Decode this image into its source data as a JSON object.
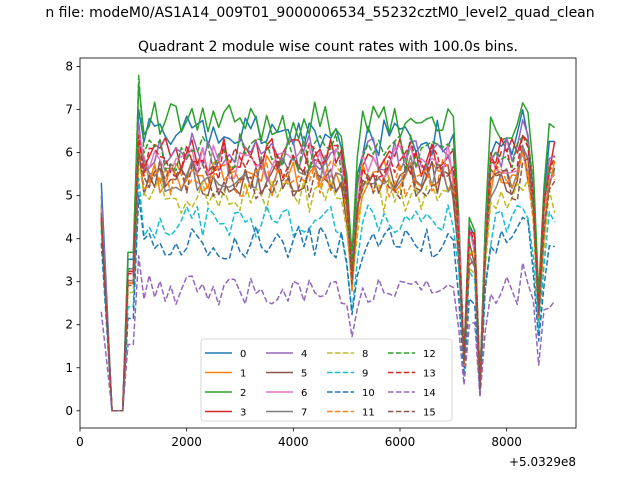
{
  "chart_data": {
    "type": "line",
    "suptitle": "n file: modeM0/AS1A14_009T01_9000006534_55232cztM0_level2_quad_clean",
    "title": "Quadrant 2 module wise count rates with 100.0s bins.",
    "xlabel": "",
    "ylabel": "",
    "x_offset_label": "+5.0329e8",
    "xlim": [
      0,
      9300
    ],
    "ylim": [
      -0.4,
      8.2
    ],
    "xticks": [
      "0",
      "2000",
      "4000",
      "6000",
      "8000"
    ],
    "yticks": [
      "0",
      "1",
      "2",
      "3",
      "4",
      "5",
      "6",
      "7",
      "8"
    ],
    "grid": false,
    "legend_position": "lower-center",
    "legend_columns": 4,
    "x_range": [
      400,
      8900
    ],
    "x_step": 100,
    "transition": {
      "plateau_to_start": [
        400,
        600
      ],
      "ramp": [
        900,
        1100
      ]
    },
    "dips": [
      {
        "center": 5100,
        "depth": 0.45
      },
      {
        "center": 7200,
        "depth": 0.8
      },
      {
        "center": 7500,
        "depth": 0.9
      },
      {
        "center": 8600,
        "depth": 0.6
      }
    ],
    "series": [
      {
        "name": "0",
        "color": "#1f77b4",
        "dash": "solid",
        "start": 5.3,
        "peak": 7.0,
        "level": 6.4
      },
      {
        "name": "1",
        "color": "#ff7f0e",
        "dash": "solid",
        "start": 4.7,
        "peak": 6.0,
        "level": 5.5
      },
      {
        "name": "2",
        "color": "#2ca02c",
        "dash": "solid",
        "start": 4.8,
        "peak": 7.6,
        "level": 6.7
      },
      {
        "name": "3",
        "color": "#d62728",
        "dash": "solid",
        "start": 4.6,
        "peak": 6.6,
        "level": 5.9
      },
      {
        "name": "4",
        "color": "#9467bd",
        "dash": "solid",
        "start": 5.0,
        "peak": 6.7,
        "level": 6.0
      },
      {
        "name": "5",
        "color": "#8c564b",
        "dash": "solid",
        "start": 4.4,
        "peak": 6.1,
        "level": 5.4
      },
      {
        "name": "6",
        "color": "#e377c2",
        "dash": "solid",
        "start": 4.7,
        "peak": 6.5,
        "level": 5.8
      },
      {
        "name": "7",
        "color": "#7f7f7f",
        "dash": "solid",
        "start": 4.5,
        "peak": 6.2,
        "level": 5.5
      },
      {
        "name": "8",
        "color": "#bcbd22",
        "dash": "dashed",
        "start": 4.3,
        "peak": 5.8,
        "level": 5.0
      },
      {
        "name": "9",
        "color": "#17becf",
        "dash": "dashed",
        "start": 4.2,
        "peak": 5.4,
        "level": 4.4
      },
      {
        "name": "10",
        "color": "#1f77b4",
        "dash": "dashed",
        "start": 3.9,
        "peak": 5.0,
        "level": 3.9
      },
      {
        "name": "11",
        "color": "#ff7f0e",
        "dash": "dashed",
        "start": 4.5,
        "peak": 6.3,
        "level": 5.4
      },
      {
        "name": "12",
        "color": "#2ca02c",
        "dash": "dashed",
        "start": 4.6,
        "peak": 7.8,
        "level": 6.0
      },
      {
        "name": "13",
        "color": "#d62728",
        "dash": "dashed",
        "start": 4.5,
        "peak": 6.4,
        "level": 5.8
      },
      {
        "name": "14",
        "color": "#9467bd",
        "dash": "dashed",
        "start": 2.3,
        "peak": 3.6,
        "level": 2.8
      },
      {
        "name": "15",
        "color": "#8c564b",
        "dash": "dashed",
        "start": 4.4,
        "peak": 6.0,
        "level": 5.3
      }
    ]
  }
}
